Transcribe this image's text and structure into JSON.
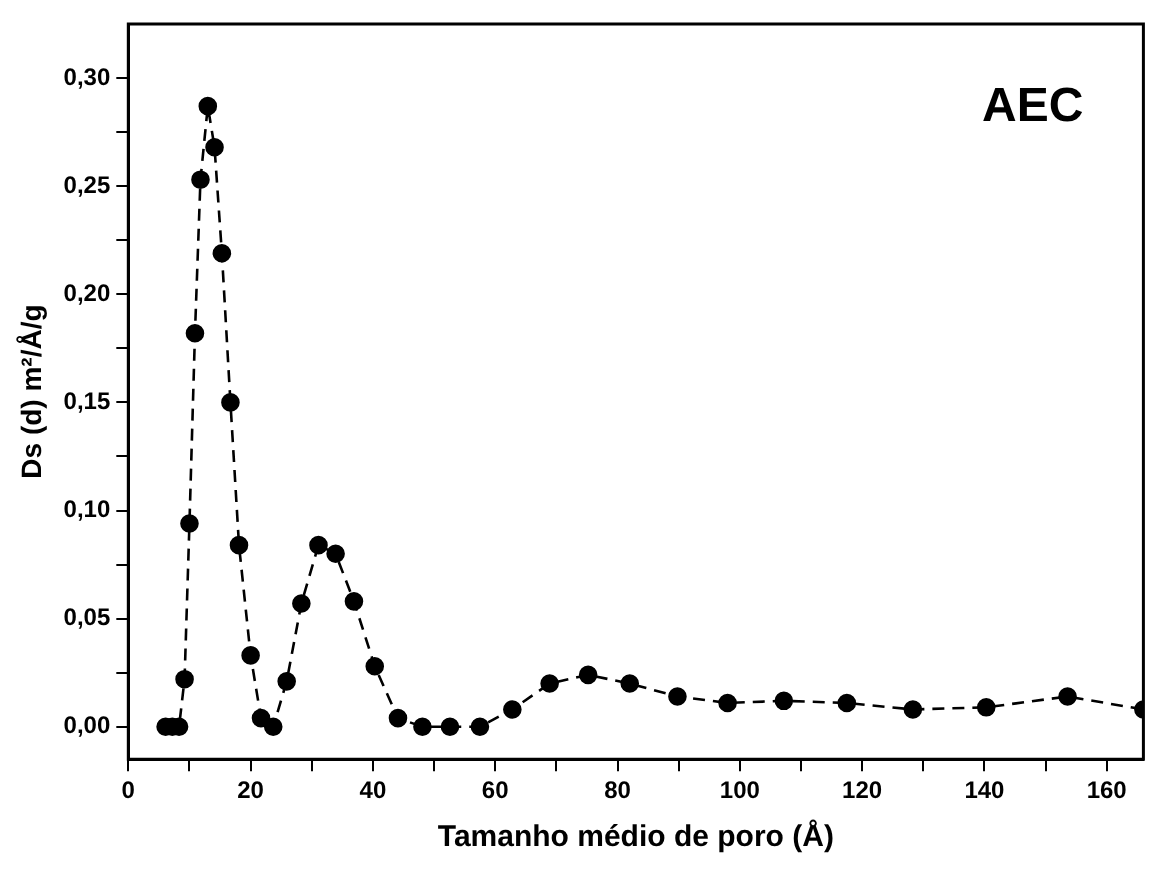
{
  "chart_data": {
    "type": "line",
    "xlabel": "Tamanho médio de poro (Å)",
    "ylabel": "Ds (d) m²/Å/g",
    "annotations": [
      "AEC"
    ],
    "x": [
      6.1,
      7.2,
      8.3,
      9.2,
      10.0,
      10.9,
      11.8,
      13.0,
      14.1,
      15.3,
      16.7,
      18.1,
      20.0,
      21.7,
      23.7,
      25.9,
      28.3,
      31.1,
      33.9,
      36.9,
      40.3,
      44.1,
      48.1,
      52.6,
      57.5,
      62.8,
      68.9,
      75.2,
      82.0,
      89.8,
      98.0,
      107.2,
      117.5,
      128.3,
      140.3,
      153.6,
      166
    ],
    "series": [
      {
        "color": "#000000",
        "values": [
          0,
          0,
          0,
          0.022,
          0.094,
          0.182,
          0.253,
          0.287,
          0.268,
          0.219,
          0.15,
          0.084,
          0.033,
          0.004,
          0,
          0.021,
          0.057,
          0.084,
          0.08,
          0.058,
          0.028,
          0.004,
          0,
          0,
          0,
          0.008,
          0.02,
          0.024,
          0.02,
          0.014,
          0.011,
          0.012,
          0.011,
          0.008,
          0.009,
          0.014,
          0.008
        ]
      }
    ],
    "xlim": [
      0,
      166
    ],
    "ylim": [
      -0.015,
      0.325
    ],
    "xticks": [
      0,
      {
        "value": 10,
        "label": null
      },
      20,
      {
        "value": 30,
        "label": null
      },
      40,
      {
        "value": 50,
        "label": null
      },
      60,
      {
        "value": 70,
        "label": null
      },
      80,
      {
        "value": 90,
        "label": null
      },
      100,
      {
        "value": 110,
        "label": null
      },
      120,
      {
        "value": 130,
        "label": null
      },
      140,
      {
        "value": 150,
        "label": null
      },
      160
    ],
    "yticks": [
      {
        "value": 0,
        "label": "0,00"
      },
      {
        "value": 0.025,
        "label": null
      },
      {
        "value": 0.05,
        "label": "0,05"
      },
      {
        "value": 0.075,
        "label": null
      },
      {
        "value": 0.1,
        "label": "0,10"
      },
      {
        "value": 0.125,
        "label": null
      },
      {
        "value": 0.15,
        "label": "0,15"
      },
      {
        "value": 0.175,
        "label": null
      },
      {
        "value": 0.2,
        "label": "0,20"
      },
      {
        "value": 0.225,
        "label": null
      },
      {
        "value": 0.25,
        "label": "0,25"
      },
      {
        "value": 0.275,
        "label": null
      },
      {
        "value": 0.3,
        "label": "0,30"
      }
    ],
    "grid": false,
    "legend": false,
    "marker": "circle",
    "line_style": "dashed"
  }
}
